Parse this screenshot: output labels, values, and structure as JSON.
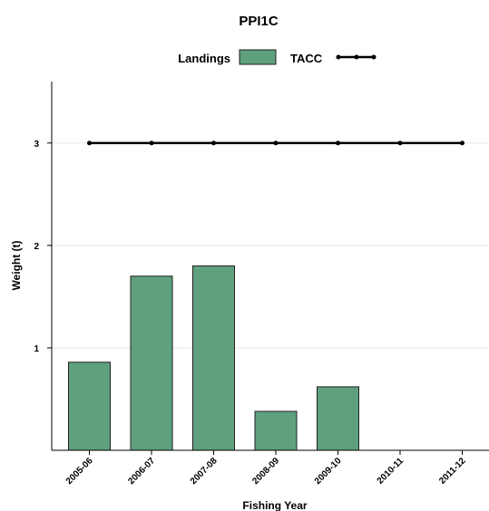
{
  "chart_data": {
    "type": "bar",
    "title": "PPI1C",
    "xlabel": "Fishing Year",
    "ylabel": "Weight (t)",
    "categories": [
      "2005-06",
      "2006-07",
      "2007-08",
      "2008-09",
      "2009-10",
      "2010-11",
      "2011-12"
    ],
    "series": [
      {
        "name": "Landings",
        "type": "bar",
        "color": "#5fa07e",
        "values": [
          0.86,
          1.7,
          1.8,
          0.38,
          0.62,
          0,
          0
        ]
      },
      {
        "name": "TACC",
        "type": "line",
        "color": "#000000",
        "values": [
          3,
          3,
          3,
          3,
          3,
          3,
          3
        ]
      }
    ],
    "ylim": [
      0,
      3.6
    ],
    "yticks": [
      1,
      2,
      3
    ],
    "legend_position": "top",
    "grid": "horizontal"
  }
}
